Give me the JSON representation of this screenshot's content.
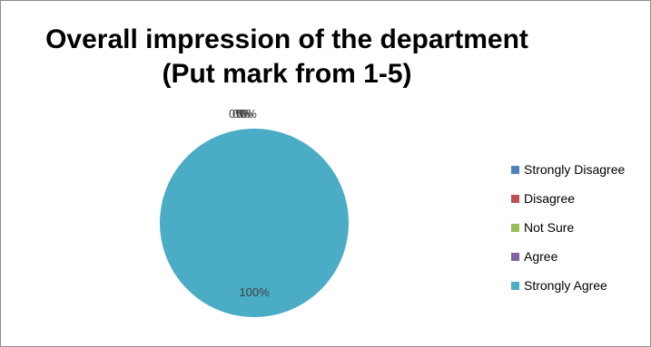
{
  "chart_data": {
    "type": "pie",
    "title_line1": "Overall impression of the department",
    "title_line2": "(Put mark from 1-5)",
    "legend_position": "right",
    "slices": [
      {
        "label": "Strongly Disagree",
        "value": 0,
        "percent_label": "0%",
        "color": "#4F81BD"
      },
      {
        "label": "Disagree",
        "value": 0,
        "percent_label": "0%",
        "color": "#C0504D"
      },
      {
        "label": "Not Sure",
        "value": 0,
        "percent_label": "0%",
        "color": "#9BBB59"
      },
      {
        "label": "Agree",
        "value": 0,
        "percent_label": "0%",
        "color": "#8064A2"
      },
      {
        "label": "Strongly Agree",
        "value": 100,
        "percent_label": "100%",
        "color": "#4BACC6"
      }
    ]
  }
}
